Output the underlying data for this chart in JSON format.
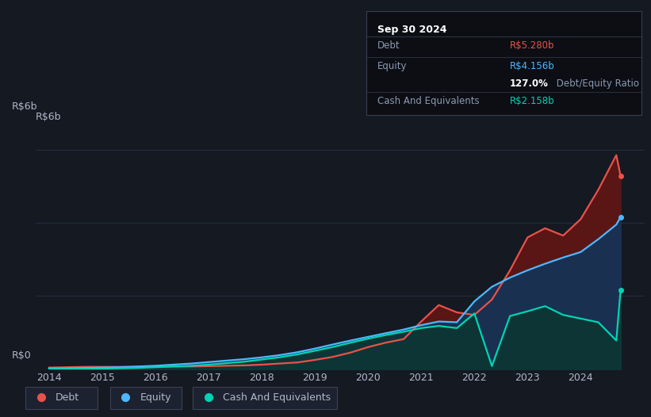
{
  "bg_color": "#141922",
  "chart_bg": "#141922",
  "ylim": [
    0,
    6.5
  ],
  "years": [
    2014.0,
    2014.33,
    2014.67,
    2015.0,
    2015.33,
    2015.67,
    2016.0,
    2016.33,
    2016.67,
    2017.0,
    2017.33,
    2017.67,
    2018.0,
    2018.33,
    2018.67,
    2019.0,
    2019.33,
    2019.67,
    2020.0,
    2020.33,
    2020.67,
    2021.0,
    2021.33,
    2021.67,
    2022.0,
    2022.33,
    2022.67,
    2023.0,
    2023.33,
    2023.67,
    2024.0,
    2024.33,
    2024.67,
    2024.75
  ],
  "debt": [
    0.04,
    0.05,
    0.06,
    0.06,
    0.06,
    0.06,
    0.06,
    0.07,
    0.07,
    0.08,
    0.09,
    0.1,
    0.12,
    0.15,
    0.18,
    0.25,
    0.33,
    0.45,
    0.6,
    0.72,
    0.82,
    1.3,
    1.75,
    1.55,
    1.48,
    1.9,
    2.7,
    3.6,
    3.85,
    3.65,
    4.1,
    4.9,
    5.85,
    5.28
  ],
  "equity": [
    0.02,
    0.02,
    0.03,
    0.04,
    0.05,
    0.07,
    0.09,
    0.12,
    0.15,
    0.19,
    0.23,
    0.27,
    0.32,
    0.38,
    0.46,
    0.56,
    0.67,
    0.78,
    0.88,
    0.98,
    1.08,
    1.2,
    1.3,
    1.28,
    1.85,
    2.25,
    2.5,
    2.7,
    2.88,
    3.05,
    3.2,
    3.55,
    3.95,
    4.156
  ],
  "cash": [
    0.0,
    0.0,
    0.01,
    0.01,
    0.02,
    0.03,
    0.05,
    0.07,
    0.09,
    0.12,
    0.16,
    0.2,
    0.26,
    0.32,
    0.4,
    0.5,
    0.6,
    0.72,
    0.83,
    0.93,
    1.02,
    1.12,
    1.18,
    1.12,
    1.52,
    0.08,
    1.45,
    1.58,
    1.72,
    1.48,
    1.38,
    1.28,
    0.78,
    2.158
  ],
  "debt_color": "#e8524a",
  "debt_fill": "#5a1515",
  "equity_color": "#4db8ff",
  "equity_fill": "#1a3050",
  "cash_color": "#00d4b4",
  "cash_fill": "#0d3535",
  "grid_color": "#252d3d",
  "text_color": "#b0b8c8",
  "legend_box_bg": "#1c2230",
  "legend_box_border": "#3a4255",
  "tooltip_bg": "#0c0e14",
  "tooltip_border": "#383e50",
  "white": "#ffffff",
  "dimtext": "#8a9ab0"
}
